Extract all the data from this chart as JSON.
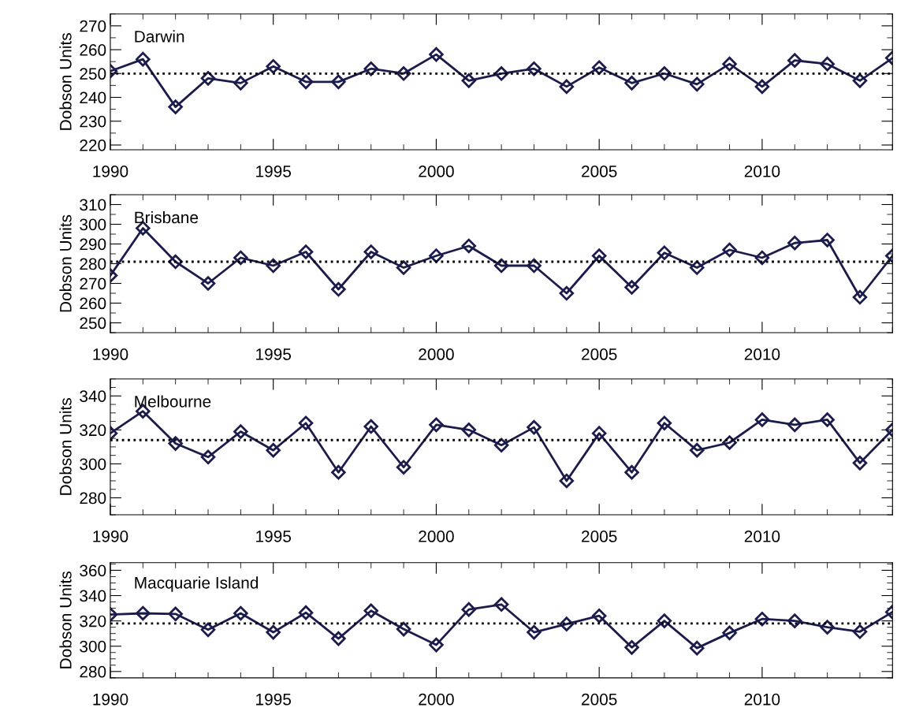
{
  "chart_data": [
    {
      "type": "line",
      "ylabel": "Dobson Units",
      "x": [
        1990,
        1991,
        1992,
        1993,
        1994,
        1995,
        1996,
        1997,
        1998,
        1999,
        2000,
        2001,
        2002,
        2003,
        2004,
        2005,
        2006,
        2007,
        2008,
        2009,
        2010,
        2011,
        2012,
        2013,
        2014
      ],
      "series": [
        {
          "name": "Darwin",
          "color": "#1c1c4c",
          "values": [
            251,
            256,
            236,
            248,
            246,
            253,
            246.5,
            246.5,
            252,
            250,
            258,
            247,
            250,
            252,
            244.5,
            252.5,
            246,
            250,
            245.5,
            254,
            244.5,
            255.5,
            254,
            247,
            256.5
          ]
        }
      ],
      "xlim": [
        1990,
        2014
      ],
      "xticks": [
        1990,
        1995,
        2000,
        2005,
        2010
      ],
      "ylim": [
        218,
        275
      ],
      "yticks": [
        220,
        230,
        240,
        250,
        260,
        270
      ],
      "ref_lines": [
        {
          "axis": "y",
          "value": 250,
          "line_style": "dotted",
          "color": "#000000"
        }
      ],
      "marker": "diamond",
      "line_style": "solid",
      "grid": false,
      "legend": false
    },
    {
      "type": "line",
      "ylabel": "Dobson Units",
      "x": [
        1990,
        1991,
        1992,
        1993,
        1994,
        1995,
        1996,
        1997,
        1998,
        1999,
        2000,
        2001,
        2002,
        2003,
        2004,
        2005,
        2006,
        2007,
        2008,
        2009,
        2010,
        2011,
        2012,
        2013,
        2014
      ],
      "series": [
        {
          "name": "Brisbane",
          "color": "#1c1c4c",
          "values": [
            274,
            298,
            281,
            270,
            283,
            279,
            286,
            267,
            286,
            278,
            284,
            289,
            279,
            279,
            265,
            284,
            268,
            285.5,
            278,
            287,
            283,
            290.5,
            292,
            263,
            284
          ]
        }
      ],
      "xlim": [
        1990,
        2014
      ],
      "xticks": [
        1990,
        1995,
        2000,
        2005,
        2010
      ],
      "ylim": [
        245,
        315
      ],
      "yticks": [
        250,
        260,
        270,
        280,
        290,
        300,
        310
      ],
      "ref_lines": [
        {
          "axis": "y",
          "value": 281,
          "line_style": "dotted",
          "color": "#000000"
        }
      ],
      "marker": "diamond",
      "line_style": "solid",
      "grid": false,
      "legend": false
    },
    {
      "type": "line",
      "ylabel": "Dobson Units",
      "x": [
        1990,
        1991,
        1992,
        1993,
        1994,
        1995,
        1996,
        1997,
        1998,
        1999,
        2000,
        2001,
        2002,
        2003,
        2004,
        2005,
        2006,
        2007,
        2008,
        2009,
        2010,
        2011,
        2012,
        2013,
        2014
      ],
      "series": [
        {
          "name": "Melbourne",
          "color": "#1c1c4c",
          "values": [
            318,
            331,
            312,
            304,
            319,
            308,
            324,
            295,
            322,
            298,
            323,
            320,
            311,
            321.5,
            290,
            318,
            295,
            324,
            308,
            312.5,
            326,
            323,
            326,
            300.5,
            320
          ]
        }
      ],
      "xlim": [
        1990,
        2014
      ],
      "xticks": [
        1990,
        1995,
        2000,
        2005,
        2010
      ],
      "ylim": [
        270,
        350
      ],
      "yticks": [
        280,
        300,
        320,
        340
      ],
      "ref_lines": [
        {
          "axis": "y",
          "value": 314,
          "line_style": "dotted",
          "color": "#000000"
        }
      ],
      "marker": "diamond",
      "line_style": "solid",
      "grid": false,
      "legend": false
    },
    {
      "type": "line",
      "ylabel": "Dobson Units",
      "x": [
        1990,
        1991,
        1992,
        1993,
        1994,
        1995,
        1996,
        1997,
        1998,
        1999,
        2000,
        2001,
        2002,
        2003,
        2004,
        2005,
        2006,
        2007,
        2008,
        2009,
        2010,
        2011,
        2012,
        2013,
        2014
      ],
      "series": [
        {
          "name": "Macquarie Island",
          "color": "#1c1c4c",
          "values": [
            325,
            326,
            325.5,
            313,
            326,
            311,
            326.5,
            306,
            328,
            313.5,
            301,
            329,
            333,
            311,
            317.5,
            324,
            299,
            320,
            298.5,
            310.5,
            321.5,
            320,
            315,
            311.5,
            327
          ]
        }
      ],
      "xlim": [
        1990,
        2014
      ],
      "xticks": [
        1990,
        1995,
        2000,
        2005,
        2010
      ],
      "ylim": [
        275,
        366
      ],
      "yticks": [
        280,
        300,
        320,
        340,
        360
      ],
      "ref_lines": [
        {
          "axis": "y",
          "value": 318,
          "line_style": "dotted",
          "color": "#000000"
        }
      ],
      "marker": "diamond",
      "line_style": "solid",
      "grid": false,
      "legend": false
    }
  ]
}
